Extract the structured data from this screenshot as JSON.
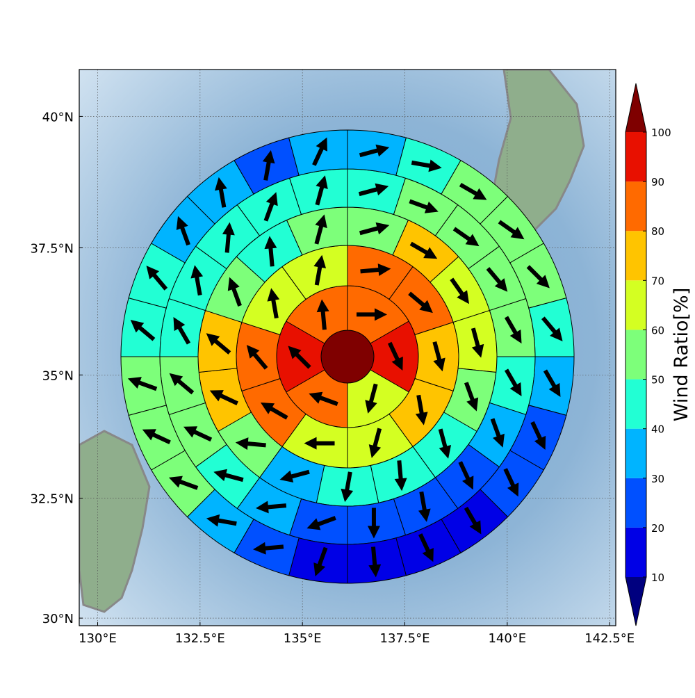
{
  "chart_data": {
    "type": "wind_sector_map",
    "xlim": [
      129.55,
      142.65
    ],
    "ylim": [
      29.84,
      40.87
    ],
    "xticks": [
      {
        "value": 130,
        "label": "130°E"
      },
      {
        "value": 132.5,
        "label": "132.5°E"
      },
      {
        "value": 135,
        "label": "135°E"
      },
      {
        "value": 137.5,
        "label": "137.5°E"
      },
      {
        "value": 140,
        "label": "140°E"
      },
      {
        "value": 142.5,
        "label": "142.5°E"
      }
    ],
    "yticks": [
      {
        "value": 30,
        "label": "30°N"
      },
      {
        "value": 32.5,
        "label": "32.5°N"
      },
      {
        "value": 35,
        "label": "35°N"
      },
      {
        "value": 37.5,
        "label": "37.5°N"
      },
      {
        "value": 40,
        "label": "40°N"
      }
    ],
    "grid": true,
    "colorbar": {
      "label": "Wind Ratio[%]",
      "levels": [
        10,
        20,
        30,
        40,
        50,
        60,
        70,
        80,
        90,
        100
      ],
      "colors": [
        "#0000e6",
        "#0050ff",
        "#00b4ff",
        "#22ffd4",
        "#7dff7a",
        "#d4ff22",
        "#ffc400",
        "#ff6a00",
        "#e81000"
      ],
      "under_color": "#00007f",
      "over_color": "#7f0000"
    },
    "center": {
      "value": 105
    },
    "rings": [
      {
        "values": [
          85,
          95,
          65,
          85,
          95,
          85
        ],
        "directions": [
          90,
          155,
          195,
          290,
          315,
          355
        ]
      },
      {
        "values": [
          85,
          85,
          75,
          75,
          65,
          65,
          85,
          85,
          65,
          65
        ],
        "directions": [
          85,
          130,
          165,
          170,
          195,
          270,
          300,
          320,
          350,
          10
        ]
      },
      {
        "values": [
          55,
          75,
          65,
          65,
          55,
          45,
          45,
          45,
          35,
          55,
          75,
          75,
          55,
          45,
          55
        ],
        "directions": [
          75,
          120,
          145,
          165,
          160,
          165,
          175,
          190,
          255,
          275,
          295,
          310,
          340,
          355,
          15
        ]
      },
      {
        "values": [
          45,
          55,
          55,
          55,
          55,
          45,
          35,
          25,
          25,
          25,
          25,
          35,
          45,
          55,
          55,
          45,
          45,
          45,
          45,
          45
        ],
        "directions": [
          75,
          110,
          125,
          140,
          150,
          150,
          160,
          155,
          170,
          180,
          250,
          265,
          285,
          295,
          310,
          330,
          350,
          5,
          20,
          15
        ]
      },
      {
        "values": [
          35,
          45,
          55,
          55,
          55,
          45,
          35,
          25,
          25,
          15,
          15,
          15,
          15,
          25,
          35,
          55,
          55,
          55,
          45,
          45,
          35,
          35,
          25,
          35
        ],
        "directions": [
          75,
          100,
          120,
          125,
          135,
          140,
          150,
          155,
          155,
          150,
          155,
          175,
          200,
          265,
          280,
          290,
          295,
          290,
          310,
          320,
          340,
          350,
          10,
          25
        ]
      }
    ]
  }
}
